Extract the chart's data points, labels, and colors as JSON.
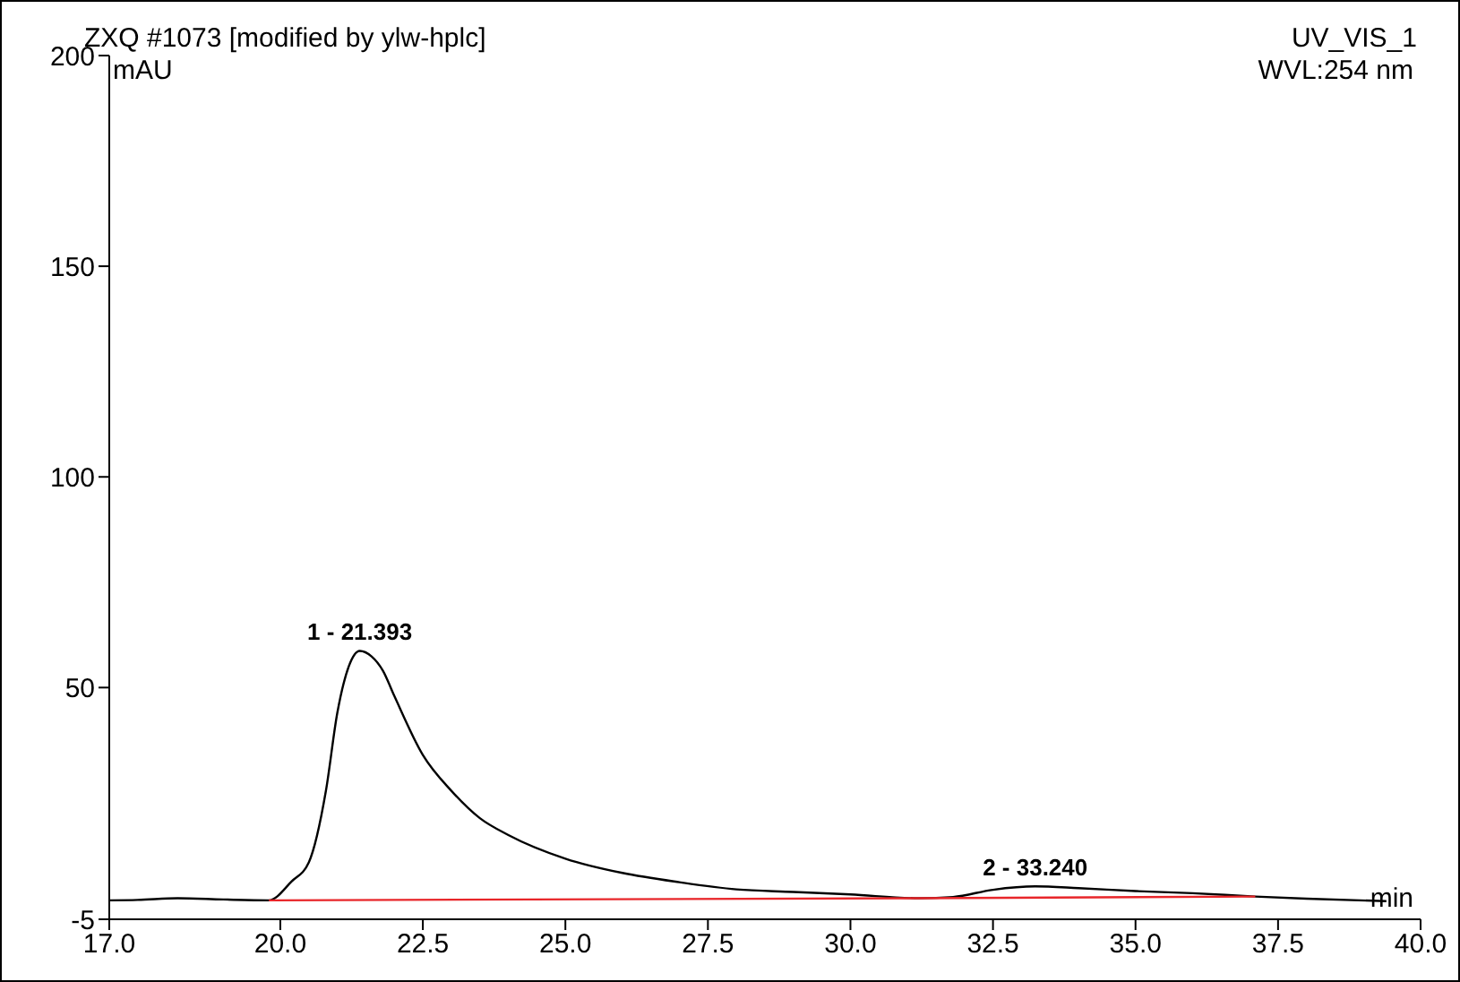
{
  "chart_data": {
    "type": "line",
    "title": "ZXQ #1073 [modified by ylw-hplc]",
    "subtitle": "UV_VIS_1",
    "ylabel": "mAU",
    "xlabel": "min",
    "annotations": [
      "WVL:254 nm",
      {
        "text": "1 - 21.393",
        "x": 21.393,
        "y": 58.7
      },
      {
        "text": "2 - 33.240",
        "x": 33.24,
        "y": 2.8
      }
    ],
    "series": [
      {
        "color": "#000000",
        "x": [
          17.0,
          17.5,
          18.2,
          19.0,
          19.8,
          20.2,
          20.5,
          20.8,
          21.0,
          21.2,
          21.393,
          21.6,
          21.8,
          22.0,
          22.5,
          23.0,
          23.5,
          24.0,
          25.0,
          26.0,
          27.0,
          28.0,
          29.0,
          30.0,
          31.2,
          31.8,
          32.5,
          33.24,
          34.0,
          35.0,
          36.0,
          37.1,
          38.0,
          39.4
        ],
        "values": [
          -0.5,
          -0.4,
          0.0,
          -0.3,
          -0.5,
          4,
          8.5,
          25.5,
          44,
          55,
          58.7,
          57.4,
          54,
          48,
          34,
          25.5,
          19,
          15,
          9.4,
          6,
          3.8,
          2.1,
          1.5,
          0.9,
          0,
          0.3,
          2.0,
          2.8,
          2.4,
          1.7,
          1.2,
          0.4,
          -0.1,
          -0.7
        ]
      },
      {
        "color": "#e8262a",
        "x": [
          19.8,
          31.2,
          37.1
        ],
        "values": [
          -0.5,
          0,
          0.4
        ]
      }
    ],
    "xlim": [
      17,
      40
    ],
    "xticks": [
      {
        "value": 17,
        "label": "17.0"
      },
      {
        "value": 20,
        "label": "20.0"
      },
      {
        "value": 22.5,
        "label": "22.5"
      },
      {
        "value": 25,
        "label": "25.0"
      },
      {
        "value": 27.5,
        "label": "27.5"
      },
      {
        "value": 30,
        "label": "30.0"
      },
      {
        "value": 32.5,
        "label": "32.5"
      },
      {
        "value": 35,
        "label": "35.0"
      },
      {
        "value": 37.5,
        "label": "37.5"
      },
      {
        "value": 40,
        "label": "40.0"
      }
    ],
    "ylim": [
      -5,
      200
    ],
    "yticks": [
      -5,
      50,
      100,
      150,
      200
    ],
    "grid": false,
    "marker": "none",
    "line_style": "solid"
  }
}
